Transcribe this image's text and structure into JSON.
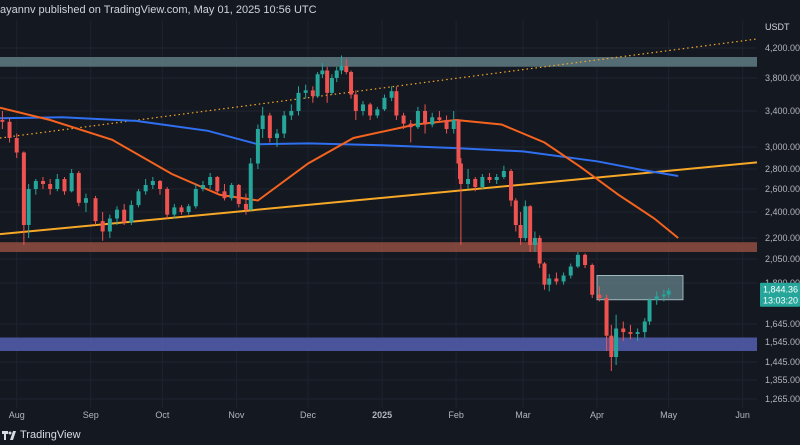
{
  "header": {
    "author_line": "ayannv published on TradingView.com, May 01, 2025 10:56 UTC"
  },
  "footer": {
    "brand": "TradingView",
    "logo_icon": "tradingview-logo-icon"
  },
  "colors": {
    "background": "#141821",
    "bull": "#26a69a",
    "bear": "#ef5350",
    "ma_fast": "#f5631f",
    "ma_slow": "#2f6ff0",
    "trendline": "#f7a826",
    "dotted_trendline": "#f7a826",
    "resistance_zone": "#5f7b82",
    "support_zone_red": "#8a4a3f",
    "support_zone_blue": "#4f5ba8",
    "price_tag": "#26a69a"
  },
  "chart_data": {
    "type": "candlestick",
    "currency_label": "USDT",
    "y_ticks": [
      4200,
      3800,
      3400,
      3000,
      2800,
      2600,
      2400,
      2200,
      2050,
      1890,
      1645,
      1545,
      1445,
      1355,
      1265
    ],
    "y_tick_labels": [
      "4,200.00",
      "3,800.00",
      "3,400.00",
      "3,000.00",
      "2,800.00",
      "2,600.00",
      "2,400.00",
      "2,200.00",
      "2,050.00",
      "1,890.00",
      "1,645.00",
      "1,545.00",
      "1,445.00",
      "1,355.00",
      "1,265.00"
    ],
    "x_ticks": [
      "Aug",
      "Sep",
      "Oct",
      "Nov",
      "Dec",
      "2025",
      "Feb",
      "Mar",
      "Apr",
      "May",
      "Jun"
    ],
    "x_tick_dates": [
      "2024-08-01",
      "2024-09-01",
      "2024-10-01",
      "2024-11-01",
      "2024-12-01",
      "2025-01-01",
      "2025-02-01",
      "2025-03-01",
      "2025-04-01",
      "2025-05-01",
      "2025-06-01"
    ],
    "current_price": "1,844.36",
    "countdown": "13:03:20",
    "zones": [
      {
        "name": "resistance",
        "y_from": 3950,
        "y_to": 4080,
        "x_from": "2024-07-25",
        "x_to": "2025-06-10"
      },
      {
        "name": "support-red",
        "y_from": 2100,
        "y_to": 2170,
        "x_from": "2024-07-25",
        "x_to": "2025-06-10"
      },
      {
        "name": "supply-box",
        "y_from": 1790,
        "y_to": 1940,
        "x_from": "2025-04-01",
        "x_to": "2025-05-07"
      },
      {
        "name": "support-blue",
        "y_from": 1500,
        "y_to": 1570,
        "x_from": "2024-07-25",
        "x_to": "2025-06-10"
      }
    ],
    "trendlines": [
      {
        "name": "ascending-solid",
        "style": "solid",
        "points": [
          [
            "2024-07-25",
            2230
          ],
          [
            "2025-06-10",
            2860
          ]
        ]
      },
      {
        "name": "ascending-dotted",
        "style": "dotted",
        "points": [
          [
            "2024-07-25",
            3100
          ],
          [
            "2025-06-10",
            4300
          ]
        ]
      }
    ],
    "ma_fast": [
      [
        "2024-07-25",
        3440
      ],
      [
        "2024-08-15",
        3300
      ],
      [
        "2024-09-10",
        3080
      ],
      [
        "2024-10-05",
        2750
      ],
      [
        "2024-10-25",
        2550
      ],
      [
        "2024-11-10",
        2500
      ],
      [
        "2024-12-01",
        2850
      ],
      [
        "2024-12-20",
        3100
      ],
      [
        "2025-01-15",
        3250
      ],
      [
        "2025-02-01",
        3300
      ],
      [
        "2025-02-20",
        3250
      ],
      [
        "2025-03-10",
        3050
      ],
      [
        "2025-03-25",
        2820
      ],
      [
        "2025-04-10",
        2550
      ],
      [
        "2025-04-25",
        2350
      ],
      [
        "2025-05-05",
        2200
      ]
    ],
    "ma_slow": [
      [
        "2024-07-25",
        3320
      ],
      [
        "2024-08-20",
        3330
      ],
      [
        "2024-09-20",
        3290
      ],
      [
        "2024-10-20",
        3180
      ],
      [
        "2024-11-10",
        3030
      ],
      [
        "2024-12-01",
        3040
      ],
      [
        "2025-01-01",
        3020
      ],
      [
        "2025-02-01",
        2990
      ],
      [
        "2025-03-01",
        2960
      ],
      [
        "2025-04-01",
        2870
      ],
      [
        "2025-04-20",
        2790
      ],
      [
        "2025-05-05",
        2730
      ]
    ],
    "candles": [
      [
        "2024-07-26",
        3300,
        3400,
        3200,
        3280
      ],
      [
        "2024-07-29",
        3280,
        3320,
        3050,
        3100
      ],
      [
        "2024-08-01",
        3100,
        3150,
        2900,
        2950
      ],
      [
        "2024-08-04",
        2950,
        2960,
        2150,
        2300
      ],
      [
        "2024-08-06",
        2300,
        2650,
        2200,
        2600
      ],
      [
        "2024-08-09",
        2600,
        2700,
        2550,
        2680
      ],
      [
        "2024-08-12",
        2680,
        2720,
        2600,
        2650
      ],
      [
        "2024-08-15",
        2650,
        2700,
        2550,
        2600
      ],
      [
        "2024-08-18",
        2600,
        2750,
        2580,
        2700
      ],
      [
        "2024-08-21",
        2700,
        2720,
        2550,
        2580
      ],
      [
        "2024-08-24",
        2580,
        2800,
        2570,
        2760
      ],
      [
        "2024-08-27",
        2760,
        2780,
        2450,
        2480
      ],
      [
        "2024-08-30",
        2480,
        2560,
        2400,
        2520
      ],
      [
        "2024-09-03",
        2520,
        2540,
        2300,
        2330
      ],
      [
        "2024-09-06",
        2330,
        2400,
        2180,
        2250
      ],
      [
        "2024-09-09",
        2250,
        2380,
        2200,
        2350
      ],
      [
        "2024-09-12",
        2350,
        2450,
        2300,
        2420
      ],
      [
        "2024-09-15",
        2420,
        2470,
        2300,
        2320
      ],
      [
        "2024-09-18",
        2320,
        2500,
        2300,
        2460
      ],
      [
        "2024-09-21",
        2460,
        2600,
        2440,
        2580
      ],
      [
        "2024-09-24",
        2580,
        2700,
        2550,
        2640
      ],
      [
        "2024-09-27",
        2640,
        2720,
        2600,
        2680
      ],
      [
        "2024-09-30",
        2680,
        2690,
        2550,
        2600
      ],
      [
        "2024-10-03",
        2600,
        2620,
        2350,
        2380
      ],
      [
        "2024-10-06",
        2380,
        2470,
        2350,
        2440
      ],
      [
        "2024-10-09",
        2440,
        2460,
        2380,
        2400
      ],
      [
        "2024-10-12",
        2400,
        2470,
        2380,
        2450
      ],
      [
        "2024-10-15",
        2450,
        2650,
        2430,
        2600
      ],
      [
        "2024-10-18",
        2600,
        2680,
        2580,
        2640
      ],
      [
        "2024-10-21",
        2640,
        2760,
        2600,
        2720
      ],
      [
        "2024-10-24",
        2720,
        2730,
        2550,
        2580
      ],
      [
        "2024-10-27",
        2580,
        2650,
        2500,
        2520
      ],
      [
        "2024-10-30",
        2520,
        2660,
        2500,
        2640
      ],
      [
        "2024-11-02",
        2640,
        2650,
        2440,
        2470
      ],
      [
        "2024-11-05",
        2470,
        2560,
        2380,
        2420
      ],
      [
        "2024-11-07",
        2420,
        2900,
        2410,
        2850
      ],
      [
        "2024-11-10",
        2850,
        3250,
        2800,
        3200
      ],
      [
        "2024-11-12",
        3200,
        3450,
        3100,
        3350
      ],
      [
        "2024-11-15",
        3350,
        3380,
        3050,
        3100
      ],
      [
        "2024-11-18",
        3100,
        3200,
        3000,
        3150
      ],
      [
        "2024-11-21",
        3150,
        3400,
        3100,
        3350
      ],
      [
        "2024-11-24",
        3350,
        3480,
        3300,
        3400
      ],
      [
        "2024-11-27",
        3400,
        3700,
        3350,
        3620
      ],
      [
        "2024-11-30",
        3620,
        3720,
        3550,
        3650
      ],
      [
        "2024-12-03",
        3650,
        3700,
        3500,
        3580
      ],
      [
        "2024-12-05",
        3580,
        3880,
        3560,
        3850
      ],
      [
        "2024-12-07",
        3850,
        4000,
        3800,
        3900
      ],
      [
        "2024-12-09",
        3900,
        3950,
        3500,
        3620
      ],
      [
        "2024-12-11",
        3620,
        3850,
        3600,
        3800
      ],
      [
        "2024-12-13",
        3800,
        3950,
        3750,
        3900
      ],
      [
        "2024-12-15",
        3900,
        4100,
        3850,
        3960
      ],
      [
        "2024-12-17",
        3960,
        4050,
        3850,
        3880
      ],
      [
        "2024-12-19",
        3880,
        3900,
        3550,
        3600
      ],
      [
        "2024-12-21",
        3600,
        3650,
        3300,
        3400
      ],
      [
        "2024-12-24",
        3400,
        3520,
        3350,
        3480
      ],
      [
        "2024-12-27",
        3480,
        3500,
        3300,
        3350
      ],
      [
        "2024-12-30",
        3350,
        3450,
        3320,
        3420
      ],
      [
        "2025-01-02",
        3420,
        3600,
        3400,
        3560
      ],
      [
        "2025-01-05",
        3560,
        3700,
        3520,
        3640
      ],
      [
        "2025-01-07",
        3640,
        3700,
        3300,
        3350
      ],
      [
        "2025-01-10",
        3350,
        3380,
        3200,
        3260
      ],
      [
        "2025-01-13",
        3260,
        3300,
        3050,
        3220
      ],
      [
        "2025-01-16",
        3220,
        3450,
        3200,
        3400
      ],
      [
        "2025-01-19",
        3400,
        3480,
        3150,
        3250
      ],
      [
        "2025-01-22",
        3250,
        3380,
        3220,
        3330
      ],
      [
        "2025-01-25",
        3330,
        3400,
        3280,
        3300
      ],
      [
        "2025-01-28",
        3300,
        3350,
        3150,
        3200
      ],
      [
        "2025-01-31",
        3200,
        3400,
        3150,
        3300
      ],
      [
        "2025-02-02",
        3300,
        3310,
        2700,
        2850
      ],
      [
        "2025-02-03",
        2850,
        2900,
        2150,
        2650
      ],
      [
        "2025-02-06",
        2650,
        2800,
        2600,
        2700
      ],
      [
        "2025-02-09",
        2700,
        2720,
        2580,
        2620
      ],
      [
        "2025-02-12",
        2620,
        2750,
        2600,
        2720
      ],
      [
        "2025-02-15",
        2720,
        2760,
        2660,
        2690
      ],
      [
        "2025-02-18",
        2690,
        2750,
        2650,
        2720
      ],
      [
        "2025-02-21",
        2720,
        2830,
        2700,
        2780
      ],
      [
        "2025-02-24",
        2780,
        2800,
        2450,
        2500
      ],
      [
        "2025-02-26",
        2500,
        2520,
        2250,
        2300
      ],
      [
        "2025-02-28",
        2300,
        2400,
        2150,
        2200
      ],
      [
        "2025-03-02",
        2200,
        2500,
        2180,
        2450
      ],
      [
        "2025-03-04",
        2450,
        2460,
        2100,
        2150
      ],
      [
        "2025-03-06",
        2150,
        2250,
        2100,
        2200
      ],
      [
        "2025-03-08",
        2200,
        2220,
        1990,
        2020
      ],
      [
        "2025-03-10",
        2020,
        2030,
        1850,
        1880
      ],
      [
        "2025-03-12",
        1880,
        1950,
        1840,
        1920
      ],
      [
        "2025-03-15",
        1920,
        1960,
        1880,
        1900
      ],
      [
        "2025-03-18",
        1900,
        1960,
        1880,
        1940
      ],
      [
        "2025-03-21",
        1940,
        2020,
        1920,
        2000
      ],
      [
        "2025-03-24",
        2000,
        2100,
        1990,
        2080
      ],
      [
        "2025-03-27",
        2080,
        2090,
        1990,
        2010
      ],
      [
        "2025-03-30",
        2010,
        2020,
        1800,
        1820
      ],
      [
        "2025-04-02",
        1820,
        1870,
        1780,
        1800
      ],
      [
        "2025-04-05",
        1800,
        1820,
        1500,
        1580
      ],
      [
        "2025-04-07",
        1580,
        1640,
        1400,
        1470
      ],
      [
        "2025-04-09",
        1470,
        1700,
        1430,
        1620
      ],
      [
        "2025-04-12",
        1620,
        1660,
        1550,
        1600
      ],
      [
        "2025-04-15",
        1600,
        1640,
        1560,
        1590
      ],
      [
        "2025-04-18",
        1590,
        1620,
        1550,
        1600
      ],
      [
        "2025-04-21",
        1600,
        1680,
        1570,
        1660
      ],
      [
        "2025-04-23",
        1660,
        1800,
        1640,
        1790
      ],
      [
        "2025-04-26",
        1790,
        1840,
        1760,
        1810
      ],
      [
        "2025-04-29",
        1810,
        1850,
        1780,
        1820
      ],
      [
        "2025-05-01",
        1820,
        1860,
        1800,
        1844
      ]
    ]
  }
}
